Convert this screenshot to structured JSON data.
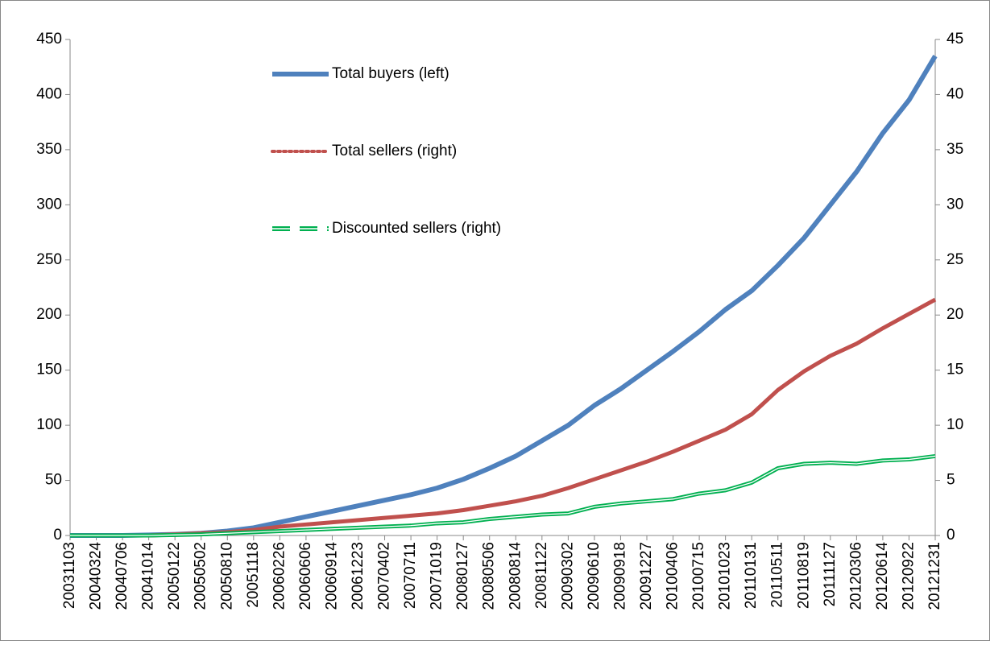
{
  "chart_data": {
    "type": "line",
    "categories": [
      "20031103",
      "20040324",
      "20040706",
      "20041014",
      "20050122",
      "20050502",
      "20050810",
      "20051118",
      "20060226",
      "20060606",
      "20060914",
      "20061223",
      "20070402",
      "20070711",
      "20071019",
      "20080127",
      "20080506",
      "20080814",
      "20081122",
      "20090302",
      "20090610",
      "20090918",
      "20091227",
      "20100406",
      "20100715",
      "20101023",
      "20110131",
      "20110511",
      "20110819",
      "20111127",
      "20120306",
      "20120614",
      "20120922",
      "20121231"
    ],
    "series": [
      {
        "name": "Total buyers (left)",
        "color": "#4f81bd",
        "values": [
          0,
          0,
          0,
          0.5,
          1,
          2,
          4,
          7,
          12,
          17,
          22,
          27,
          32,
          37,
          43,
          51,
          61,
          72,
          86,
          100,
          118,
          133,
          150,
          167,
          185,
          205,
          222,
          245,
          270,
          300,
          330,
          365,
          395,
          435
        ]
      },
      {
        "name": "Total sellers (right)",
        "color": "#c0504d",
        "axis": "y2",
        "values": [
          0,
          0,
          0,
          0,
          0.1,
          0.2,
          0.3,
          0.5,
          0.8,
          1.0,
          1.2,
          1.4,
          1.6,
          1.8,
          2.0,
          2.3,
          2.7,
          3.1,
          3.6,
          4.3,
          5.1,
          5.9,
          6.7,
          7.6,
          8.6,
          9.6,
          11,
          13.2,
          14.9,
          16.3,
          17.4,
          18.8,
          20.1,
          21.4
        ]
      },
      {
        "name": "Discounted sellers (right)",
        "color": "#00b050",
        "axis": "y2",
        "values": [
          0,
          0,
          0,
          0,
          0.05,
          0.1,
          0.2,
          0.3,
          0.4,
          0.5,
          0.6,
          0.7,
          0.8,
          0.9,
          1.1,
          1.2,
          1.5,
          1.7,
          1.9,
          2.0,
          2.6,
          2.9,
          3.1,
          3.3,
          3.8,
          4.1,
          4.8,
          6.1,
          6.5,
          6.6,
          6.5,
          6.8,
          6.9,
          7.2
        ]
      }
    ],
    "ylim": [
      0,
      450
    ],
    "yticks": [
      0,
      50,
      100,
      150,
      200,
      250,
      300,
      350,
      400,
      450
    ],
    "y2lim": [
      0,
      45
    ],
    "y2ticks": [
      0,
      5,
      10,
      15,
      20,
      25,
      30,
      35,
      40,
      45
    ]
  }
}
